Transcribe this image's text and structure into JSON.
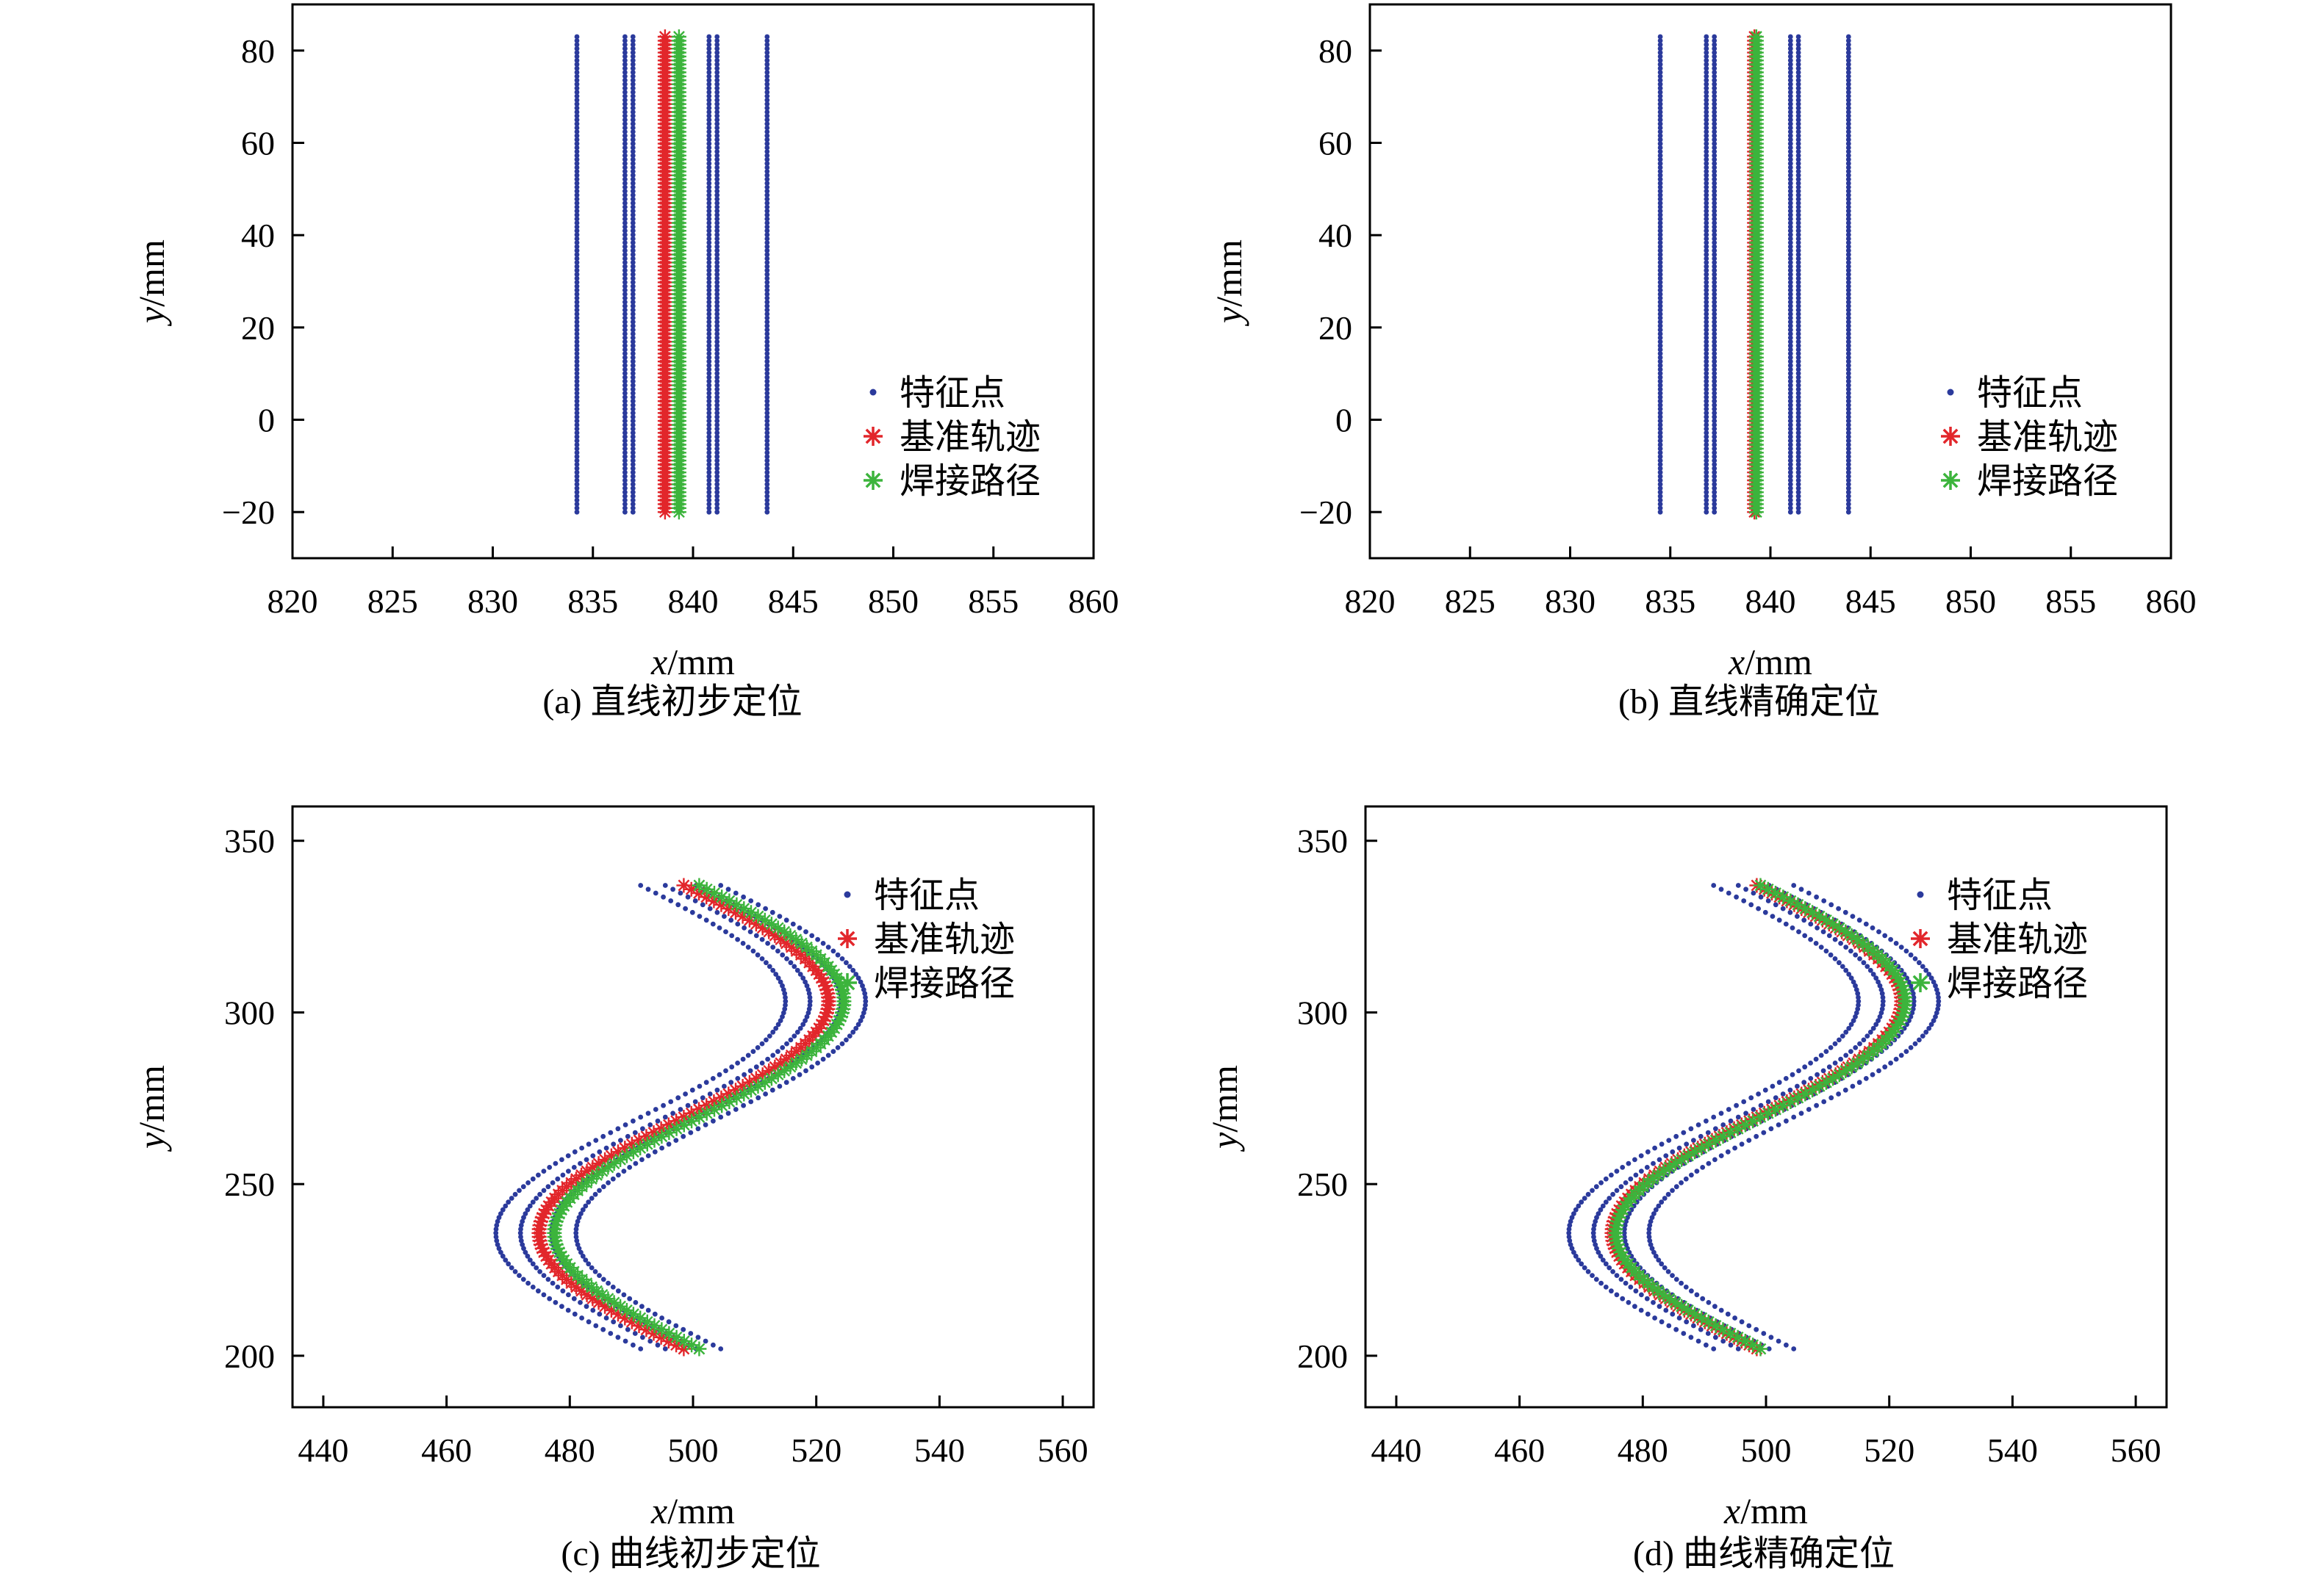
{
  "colors": {
    "feature": "#2b3a9c",
    "reference": "#e2262b",
    "weld": "#3cb43c"
  },
  "legend": [
    "特征点",
    "基准轨迹",
    "焊接路径"
  ],
  "chart_data": [
    {
      "id": "a",
      "type": "scatter",
      "caption": "(a) 直线初步定位",
      "xlabel_var": "x",
      "xlabel_unit": "/mm",
      "ylabel_var": "y",
      "ylabel_unit": "/mm",
      "xlim": [
        820,
        860
      ],
      "ylim": [
        -30,
        90
      ],
      "xticks": [
        820,
        825,
        830,
        835,
        840,
        845,
        850,
        855,
        860
      ],
      "yticks": [
        -20,
        0,
        20,
        40,
        60,
        80
      ],
      "legend_position": "lower-right",
      "shape": "line",
      "y_range": [
        -20,
        83
      ],
      "series": [
        {
          "name": "特征点",
          "marker": "dot",
          "color_key": "feature",
          "x": [
            834.2,
            836.6,
            837.0,
            840.8,
            841.2,
            843.7
          ]
        },
        {
          "name": "基准轨迹",
          "marker": "star",
          "color_key": "reference",
          "x": [
            838.6
          ]
        },
        {
          "name": "焊接路径",
          "marker": "star",
          "color_key": "weld",
          "x": [
            839.3
          ]
        }
      ]
    },
    {
      "id": "b",
      "type": "scatter",
      "caption": "(b) 直线精确定位",
      "xlabel_var": "x",
      "xlabel_unit": "/mm",
      "ylabel_var": "y",
      "ylabel_unit": "/mm",
      "xlim": [
        820,
        860
      ],
      "ylim": [
        -30,
        90
      ],
      "xticks": [
        820,
        825,
        830,
        835,
        840,
        845,
        850,
        855,
        860
      ],
      "yticks": [
        -20,
        0,
        20,
        40,
        60,
        80
      ],
      "legend_position": "lower-right",
      "shape": "line",
      "y_range": [
        -20,
        83
      ],
      "series": [
        {
          "name": "特征点",
          "marker": "dot",
          "color_key": "feature",
          "x": [
            834.5,
            836.8,
            837.2,
            841.0,
            841.4,
            843.9
          ]
        },
        {
          "name": "基准轨迹",
          "marker": "star",
          "color_key": "reference",
          "x": [
            839.2
          ]
        },
        {
          "name": "焊接路径",
          "marker": "star",
          "color_key": "weld",
          "x": [
            839.3
          ]
        }
      ]
    },
    {
      "id": "c",
      "type": "scatter",
      "caption": "(c) 曲线初步定位",
      "xlabel_var": "x",
      "xlabel_unit": "/mm",
      "ylabel_var": "y",
      "ylabel_unit": "/mm",
      "xlim": [
        435,
        565
      ],
      "ylim": [
        185,
        360
      ],
      "xticks": [
        440,
        460,
        480,
        500,
        520,
        540,
        560
      ],
      "yticks": [
        200,
        250,
        300,
        350
      ],
      "legend_position": "top-right",
      "shape": "s-curve",
      "y_range": [
        202,
        337
      ],
      "series": [
        {
          "name": "特征点",
          "marker": "dot",
          "color_key": "feature",
          "offsets": [
            -7,
            -3,
            2,
            6
          ]
        },
        {
          "name": "基准轨迹",
          "marker": "star",
          "color_key": "reference",
          "offsets": [
            0
          ]
        },
        {
          "name": "焊接路径",
          "marker": "star",
          "color_key": "weld",
          "offsets": [
            2.5
          ]
        }
      ]
    },
    {
      "id": "d",
      "type": "scatter",
      "caption": "(d) 曲线精确定位",
      "xlabel_var": "x",
      "xlabel_unit": "/mm",
      "ylabel_var": "y",
      "ylabel_unit": "/mm",
      "xlim": [
        435,
        565
      ],
      "ylim": [
        185,
        360
      ],
      "xticks": [
        440,
        460,
        480,
        500,
        520,
        540,
        560
      ],
      "yticks": [
        200,
        250,
        300,
        350
      ],
      "legend_position": "top-right",
      "shape": "s-curve",
      "y_range": [
        202,
        337
      ],
      "series": [
        {
          "name": "特征点",
          "marker": "dot",
          "color_key": "feature",
          "offsets": [
            -7,
            -3,
            2,
            6
          ]
        },
        {
          "name": "基准轨迹",
          "marker": "star",
          "color_key": "reference",
          "offsets": [
            0
          ]
        },
        {
          "name": "焊接路径",
          "marker": "star",
          "color_key": "weld",
          "offsets": [
            0.6
          ]
        }
      ]
    }
  ]
}
